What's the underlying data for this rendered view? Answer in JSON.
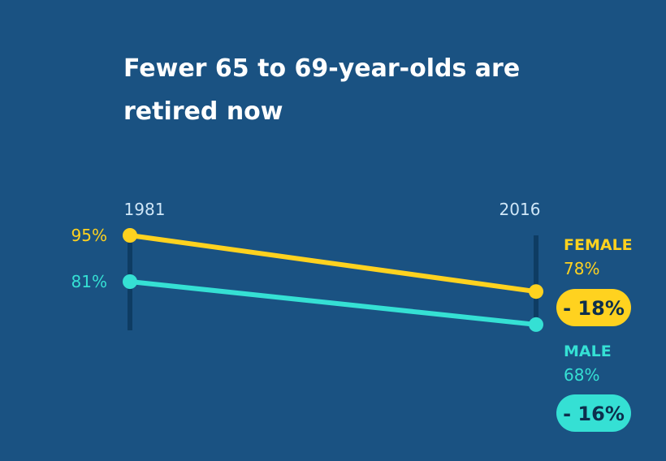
{
  "title": "Fewer 65 to 69-year-olds are retired now",
  "colors": {
    "background": "#1a5282",
    "female": "#ffd21f",
    "male": "#35e0d4",
    "axis": "#0e3c63"
  },
  "chart_data": {
    "type": "line",
    "title": "Fewer 65 to 69-year-olds are retired now",
    "x": [
      "1981",
      "2016"
    ],
    "ylim": [
      60,
      100
    ],
    "grid": false,
    "series": [
      {
        "name": "FEMALE",
        "values": [
          95,
          78
        ],
        "value_labels": [
          "95%",
          "78%"
        ],
        "change_label": "- 18%"
      },
      {
        "name": "MALE",
        "values": [
          81,
          68
        ],
        "value_labels": [
          "81%",
          "68%"
        ],
        "change_label": "- 16%"
      }
    ]
  }
}
